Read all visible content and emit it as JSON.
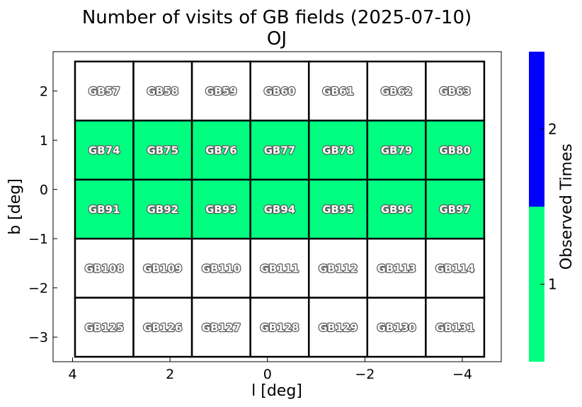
{
  "chart_data": {
    "type": "heatmap",
    "title": "Number of visits of GB fields (2025-07-10)",
    "subtitle": "OJ",
    "xlabel": "l [deg]",
    "ylabel": "b [deg]",
    "xlim": [
      4.4,
      -4.8
    ],
    "ylim": [
      -3.5,
      2.8
    ],
    "x_ticks": [
      4,
      2,
      0,
      -2,
      -4
    ],
    "y_ticks": [
      2,
      1,
      0,
      -1,
      -2,
      -3
    ],
    "x_tick_labels": [
      "4",
      "2",
      "0",
      "−2",
      "−4"
    ],
    "y_tick_labels": [
      "2",
      "1",
      "0",
      "−1",
      "−2",
      "−3"
    ],
    "grid": false,
    "colorbar": {
      "label": "Observed Times",
      "ticks": [
        1,
        2
      ],
      "tick_labels": [
        "1",
        "2"
      ],
      "range": [
        0.5,
        2.5
      ],
      "colors": [
        {
          "from": 0.5,
          "to": 1.5,
          "color": "#00ff80"
        },
        {
          "from": 1.5,
          "to": 2.5,
          "color": "#0000ff"
        }
      ]
    },
    "cell_border_color": "#000000",
    "unobserved_color": "#ffffff",
    "columns_l_edges": [
      3.95,
      2.75,
      1.55,
      0.35,
      -0.85,
      -2.05,
      -3.25,
      -4.45
    ],
    "rows": [
      {
        "b_range": [
          1.4,
          2.6
        ],
        "fields": [
          "GB57",
          "GB58",
          "GB59",
          "GB60",
          "GB61",
          "GB62",
          "GB63"
        ],
        "visits": [
          0,
          0,
          0,
          0,
          0,
          0,
          0
        ]
      },
      {
        "b_range": [
          0.2,
          1.4
        ],
        "fields": [
          "GB74",
          "GB75",
          "GB76",
          "GB77",
          "GB78",
          "GB79",
          "GB80"
        ],
        "visits": [
          1,
          1,
          1,
          1,
          1,
          1,
          1
        ]
      },
      {
        "b_range": [
          -1.0,
          0.2
        ],
        "fields": [
          "GB91",
          "GB92",
          "GB93",
          "GB94",
          "GB95",
          "GB96",
          "GB97"
        ],
        "visits": [
          1,
          1,
          1,
          1,
          1,
          1,
          1
        ]
      },
      {
        "b_range": [
          -2.2,
          -1.0
        ],
        "fields": [
          "GB108",
          "GB109",
          "GB110",
          "GB111",
          "GB112",
          "GB113",
          "GB114"
        ],
        "visits": [
          0,
          0,
          0,
          0,
          0,
          0,
          0
        ]
      },
      {
        "b_range": [
          -3.4,
          -2.2
        ],
        "fields": [
          "GB125",
          "GB126",
          "GB127",
          "GB128",
          "GB129",
          "GB130",
          "GB131"
        ],
        "visits": [
          0,
          0,
          0,
          0,
          0,
          0,
          0
        ]
      }
    ]
  }
}
